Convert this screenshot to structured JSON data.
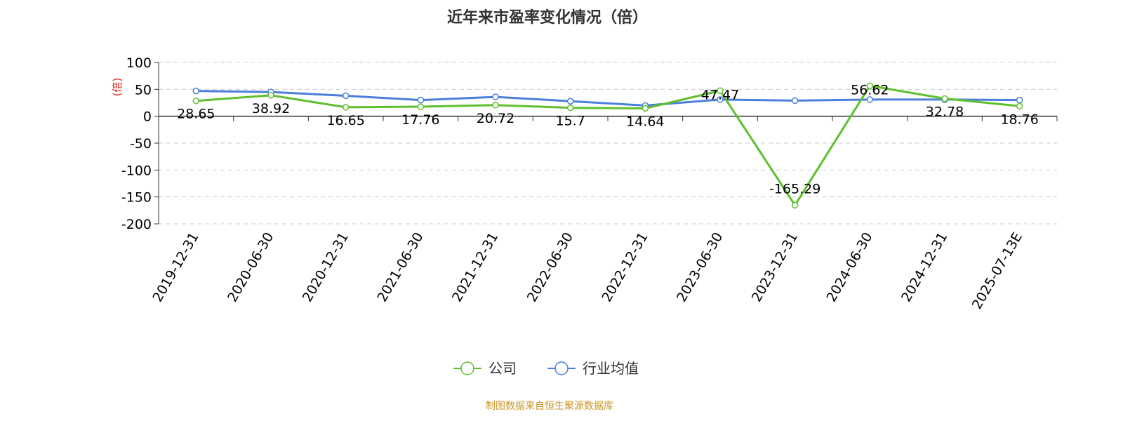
{
  "chart_data": {
    "type": "line",
    "title": "近年来市盈率变化情况（倍）",
    "ylabel": "(倍)",
    "xlabel": "",
    "categories": [
      "2019-12-31",
      "2020-06-30",
      "2020-12-31",
      "2021-06-30",
      "2021-12-31",
      "2022-06-30",
      "2022-12-31",
      "2023-06-30",
      "2023-12-31",
      "2024-06-30",
      "2024-12-31",
      "2025-07-13E"
    ],
    "ylim": [
      -200,
      100
    ],
    "yticks": [
      "100",
      "50",
      "0",
      "-50",
      "-100",
      "-150",
      "-200"
    ],
    "grid": true,
    "legend_position": "bottom",
    "series": [
      {
        "name": "公司",
        "color": "#5fc02e",
        "values": [
          28.65,
          38.92,
          16.65,
          17.76,
          20.72,
          15.7,
          14.64,
          47.47,
          -165.29,
          56.62,
          32.78,
          18.76
        ],
        "data_labels": [
          "28.65",
          "38.92",
          "16.65",
          "17.76",
          "20.72",
          "15.7",
          "14.64",
          "47.47",
          "-165.29",
          "56.62",
          "32.78",
          "18.76"
        ]
      },
      {
        "name": "行业均值",
        "color": "#4a7fdc",
        "values": [
          47,
          45,
          38,
          30,
          36,
          28,
          20,
          31,
          29,
          31,
          31,
          30
        ]
      }
    ],
    "source": "制图数据来自恒生聚源数据库"
  }
}
